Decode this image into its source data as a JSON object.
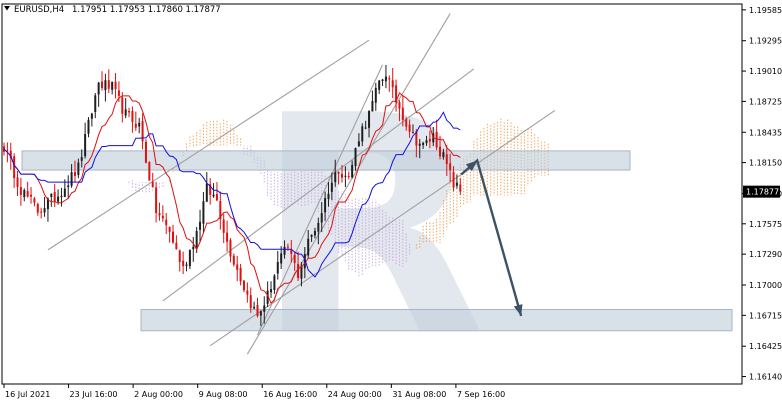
{
  "header": {
    "menu_icon": "triangle-down-icon",
    "symbol_tf": "EURUSD,H4",
    "ohlc": "1.17951 1.17953 1.17860 1.17877"
  },
  "watermark": {
    "text": "R",
    "color": "#e3e7ee"
  },
  "colors": {
    "bull": "#1e1e1e",
    "bear": "#e01010",
    "tenkan": "#e01010",
    "kijun": "#1010e0",
    "cloud_a": "#f0a050",
    "cloud_b": "#c8a6e0",
    "line": "#a0a0a0",
    "zone": "#c3d0dc",
    "arrow": "#3e5266",
    "price_label_bg": "#000000",
    "price_label_fg": "#ffffff"
  },
  "chart_data": {
    "type": "candlestick",
    "symbol": "EURUSD",
    "timeframe": "H4",
    "y_ticks": [
      "1.19585",
      "1.19295",
      "1.19010",
      "1.18725",
      "1.18435",
      "1.18150",
      "1.17860",
      "1.17575",
      "1.17290",
      "1.17000",
      "1.16715",
      "1.16425",
      "1.16140"
    ],
    "x_ticks": [
      "16 Jul 2021",
      "23 Jul 16:00",
      "2 Aug 00:00",
      "9 Aug 08:00",
      "16 Aug 16:00",
      "24 Aug 00:00",
      "31 Aug 08:00",
      "7 Sep 16:00"
    ],
    "current_price": "1.17877",
    "ylim": [
      1.1607,
      1.1964
    ],
    "price_path": [
      {
        "bar": 0,
        "price": 1.183
      },
      {
        "bar": 5,
        "price": 1.179
      },
      {
        "bar": 10,
        "price": 1.177
      },
      {
        "bar": 16,
        "price": 1.1785
      },
      {
        "bar": 22,
        "price": 1.181
      },
      {
        "bar": 28,
        "price": 1.189
      },
      {
        "bar": 32,
        "price": 1.1885
      },
      {
        "bar": 36,
        "price": 1.186
      },
      {
        "bar": 40,
        "price": 1.185
      },
      {
        "bar": 45,
        "price": 1.177
      },
      {
        "bar": 49,
        "price": 1.175
      },
      {
        "bar": 53,
        "price": 1.1715
      },
      {
        "bar": 57,
        "price": 1.175
      },
      {
        "bar": 60,
        "price": 1.179
      },
      {
        "bar": 63,
        "price": 1.178
      },
      {
        "bar": 66,
        "price": 1.174
      },
      {
        "bar": 69,
        "price": 1.1715
      },
      {
        "bar": 72,
        "price": 1.169
      },
      {
        "bar": 75,
        "price": 1.167
      },
      {
        "bar": 78,
        "price": 1.169
      },
      {
        "bar": 81,
        "price": 1.172
      },
      {
        "bar": 84,
        "price": 1.1735
      },
      {
        "bar": 87,
        "price": 1.171
      },
      {
        "bar": 90,
        "price": 1.174
      },
      {
        "bar": 93,
        "price": 1.176
      },
      {
        "bar": 96,
        "price": 1.179
      },
      {
        "bar": 99,
        "price": 1.181
      },
      {
        "bar": 102,
        "price": 1.18
      },
      {
        "bar": 105,
        "price": 1.184
      },
      {
        "bar": 108,
        "price": 1.186
      },
      {
        "bar": 111,
        "price": 1.189
      },
      {
        "bar": 113,
        "price": 1.19
      },
      {
        "bar": 115,
        "price": 1.188
      },
      {
        "bar": 118,
        "price": 1.186
      },
      {
        "bar": 121,
        "price": 1.184
      },
      {
        "bar": 124,
        "price": 1.183
      },
      {
        "bar": 127,
        "price": 1.184
      },
      {
        "bar": 130,
        "price": 1.182
      },
      {
        "bar": 133,
        "price": 1.1795
      },
      {
        "bar": 135,
        "price": 1.1788
      }
    ],
    "indicators": [
      "Ichimoku Kinko Hyo"
    ],
    "zones": [
      {
        "price_top": 1.1826,
        "price_bottom": 1.1808
      },
      {
        "price_top": 1.1677,
        "price_bottom": 1.1657
      }
    ],
    "trend_lines": [
      {
        "from": [
          13,
          1.1733
        ],
        "to": [
          108,
          1.193
        ]
      },
      {
        "from": [
          47,
          1.1685
        ],
        "to": [
          139,
          1.1903
        ]
      },
      {
        "from": [
          61,
          1.1643
        ],
        "to": [
          163,
          1.1864
        ]
      },
      {
        "from": [
          72,
          1.1635
        ],
        "to": [
          132,
          1.1955
        ]
      },
      {
        "from": [
          75,
          1.1653
        ],
        "to": [
          112,
          1.1907
        ]
      }
    ],
    "arrow": {
      "from": [
        140,
        1.1817
      ],
      "to": [
        153,
        1.1671
      ]
    },
    "grid": false,
    "legend": "none"
  }
}
